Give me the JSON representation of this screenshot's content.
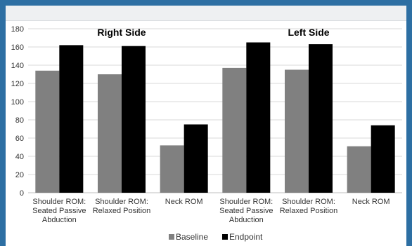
{
  "chart_data": {
    "type": "bar",
    "categories": [
      [
        "Shoulder ROM:",
        "Seated Passive",
        "Abduction"
      ],
      [
        "Shoulder ROM:",
        "Relaxed Position"
      ],
      [
        "Neck ROM"
      ],
      [
        "Shoulder ROM:",
        "Seated Passive",
        "Abduction"
      ],
      [
        "Shoulder ROM:",
        "Relaxed Position"
      ],
      [
        "Neck ROM"
      ]
    ],
    "group_labels": [
      "Right Side",
      "Left Side"
    ],
    "series": [
      {
        "name": "Baseline",
        "color": "#808080",
        "values": [
          134,
          130,
          52,
          137,
          135,
          51
        ]
      },
      {
        "name": "Endpoint",
        "color": "#000000",
        "values": [
          162,
          161,
          75,
          165,
          163,
          74
        ]
      }
    ],
    "ylim": [
      0,
      180
    ],
    "yticks": [
      0,
      20,
      40,
      60,
      80,
      100,
      120,
      140,
      160,
      180
    ],
    "grid": true,
    "legend_position": "bottom-center",
    "title": "",
    "xlabel": "",
    "ylabel": ""
  }
}
